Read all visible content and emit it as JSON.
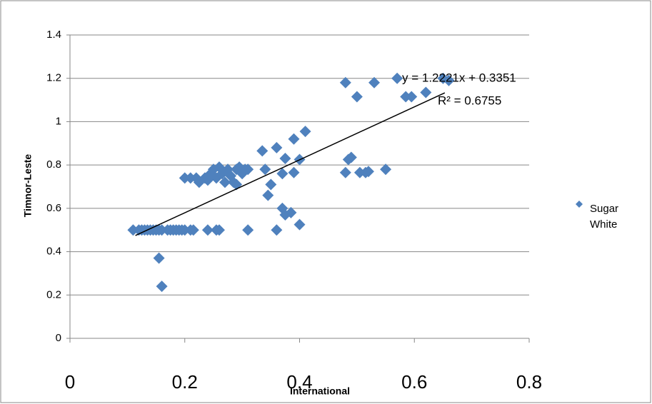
{
  "chart_data": {
    "type": "scatter",
    "x_label": "International",
    "y_label": "Timnor-Leste",
    "xlim": [
      0,
      0.8
    ],
    "xticks": [
      0,
      0.2,
      0.4,
      0.6,
      0.8
    ],
    "ylim": [
      0,
      1.4
    ],
    "yticks": [
      0,
      0.2,
      0.4,
      0.6,
      0.8,
      1,
      1.2,
      1.4
    ],
    "grid": true,
    "legend": "right",
    "series": [
      {
        "name": "Sugar White",
        "color": "#4f81bd",
        "x": [
          0.11,
          0.12,
          0.125,
          0.13,
          0.135,
          0.14,
          0.145,
          0.15,
          0.155,
          0.16,
          0.17,
          0.175,
          0.18,
          0.185,
          0.19,
          0.195,
          0.2,
          0.21,
          0.215,
          0.24,
          0.255,
          0.26,
          0.31,
          0.36,
          0.155,
          0.16,
          0.2,
          0.21,
          0.22,
          0.225,
          0.235,
          0.24,
          0.245,
          0.25,
          0.255,
          0.26,
          0.265,
          0.27,
          0.275,
          0.28,
          0.285,
          0.29,
          0.295,
          0.3,
          0.305,
          0.31,
          0.29,
          0.335,
          0.34,
          0.345,
          0.35,
          0.36,
          0.37,
          0.375,
          0.37,
          0.375,
          0.385,
          0.39,
          0.39,
          0.4,
          0.4,
          0.41,
          0.48,
          0.48,
          0.485,
          0.49,
          0.5,
          0.505,
          0.515,
          0.52,
          0.53,
          0.55,
          0.57,
          0.585,
          0.595,
          0.62,
          0.65,
          0.66
        ],
        "values": [
          0.5,
          0.5,
          0.5,
          0.5,
          0.5,
          0.5,
          0.5,
          0.5,
          0.5,
          0.5,
          0.5,
          0.5,
          0.5,
          0.5,
          0.5,
          0.5,
          0.5,
          0.5,
          0.5,
          0.5,
          0.5,
          0.5,
          0.5,
          0.5,
          0.37,
          0.24,
          0.74,
          0.74,
          0.74,
          0.72,
          0.74,
          0.73,
          0.76,
          0.78,
          0.74,
          0.79,
          0.76,
          0.72,
          0.78,
          0.75,
          0.72,
          0.78,
          0.79,
          0.76,
          0.78,
          0.78,
          0.71,
          0.865,
          0.78,
          0.66,
          0.71,
          0.88,
          0.76,
          0.83,
          0.6,
          0.57,
          0.58,
          0.92,
          0.765,
          0.825,
          0.525,
          0.955,
          1.18,
          0.765,
          0.825,
          0.835,
          1.115,
          0.765,
          0.765,
          0.77,
          1.18,
          0.78,
          1.2,
          1.115,
          1.115,
          1.135,
          1.2,
          1.19
        ]
      }
    ],
    "trendline": {
      "slope": 1.2221,
      "intercept": 0.3351,
      "x": [
        0.114,
        0.653
      ],
      "label": "y = 1.2221x + 0.3351",
      "r2_label": "R² = 0.6755"
    }
  }
}
